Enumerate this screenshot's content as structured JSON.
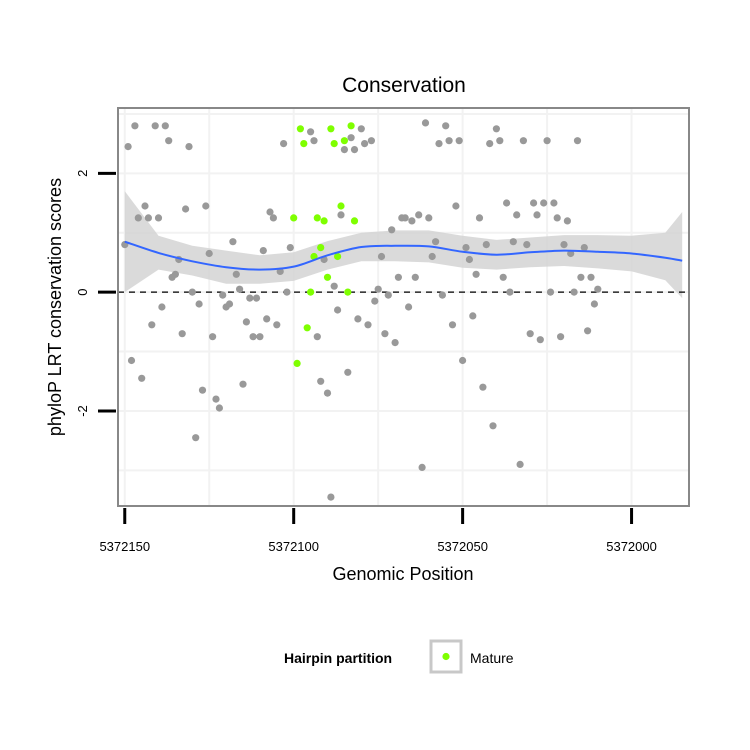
{
  "chart_data": {
    "type": "scatter",
    "title": "Conservation",
    "xlabel": "Genomic Position",
    "ylabel": "phyloP LRT conservation scores",
    "x_reversed": true,
    "xlim": [
      5372152,
      5371983
    ],
    "ylim": [
      -3.6,
      3.1
    ],
    "x_ticks": [
      5372150,
      5372100,
      5372050,
      5372000
    ],
    "x_tick_labels": [
      "5372150",
      "5372100",
      "5372050",
      "5372000"
    ],
    "y_ticks": [
      -2,
      0,
      2
    ],
    "y_tick_labels": [
      "-2",
      "0",
      "2"
    ],
    "y_grid": [
      -3,
      -1,
      1,
      3
    ],
    "x_grid": [
      5372125,
      5372075,
      5372025
    ],
    "reference_line": 0,
    "colors": {
      "other": "#999999",
      "mature": "#7FFF00",
      "smooth": "#3366FF",
      "band": "#D3D3D3",
      "panel_border": "#888888"
    },
    "legend": {
      "title": "Hairpin partition",
      "entries": [
        "Mature"
      ]
    },
    "series": [
      {
        "name": "Other",
        "points": [
          [
            5372150,
            0.8
          ],
          [
            5372149,
            2.45
          ],
          [
            5372148,
            -1.15
          ],
          [
            5372147,
            2.8
          ],
          [
            5372146,
            1.25
          ],
          [
            5372145,
            -1.45
          ],
          [
            5372144,
            1.45
          ],
          [
            5372143,
            1.25
          ],
          [
            5372142,
            -0.55
          ],
          [
            5372141,
            2.8
          ],
          [
            5372140,
            1.25
          ],
          [
            5372139,
            -0.25
          ],
          [
            5372138,
            2.8
          ],
          [
            5372137,
            2.55
          ],
          [
            5372136,
            0.25
          ],
          [
            5372135,
            0.3
          ],
          [
            5372134,
            0.55
          ],
          [
            5372133,
            -0.7
          ],
          [
            5372132,
            1.4
          ],
          [
            5372131,
            2.45
          ],
          [
            5372130,
            0.0
          ],
          [
            5372129,
            -2.45
          ],
          [
            5372128,
            -0.2
          ],
          [
            5372127,
            -1.65
          ],
          [
            5372126,
            1.45
          ],
          [
            5372125,
            0.65
          ],
          [
            5372124,
            -0.75
          ],
          [
            5372123,
            -1.8
          ],
          [
            5372122,
            -1.95
          ],
          [
            5372121,
            -0.05
          ],
          [
            5372120,
            -0.25
          ],
          [
            5372119,
            -0.2
          ],
          [
            5372118,
            0.85
          ],
          [
            5372117,
            0.3
          ],
          [
            5372116,
            0.05
          ],
          [
            5372115,
            -1.55
          ],
          [
            5372114,
            -0.5
          ],
          [
            5372113,
            -0.1
          ],
          [
            5372112,
            -0.75
          ],
          [
            5372111,
            -0.1
          ],
          [
            5372110,
            -0.75
          ],
          [
            5372109,
            0.7
          ],
          [
            5372108,
            -0.45
          ],
          [
            5372107,
            1.35
          ],
          [
            5372106,
            1.25
          ],
          [
            5372105,
            -0.55
          ],
          [
            5372104,
            0.35
          ],
          [
            5372103,
            2.5
          ],
          [
            5372102,
            0.0
          ],
          [
            5372101,
            0.75
          ],
          [
            5372095,
            2.7
          ],
          [
            5372094,
            2.55
          ],
          [
            5372093,
            -0.75
          ],
          [
            5372092,
            -1.5
          ],
          [
            5372091,
            0.55
          ],
          [
            5372090,
            -1.7
          ],
          [
            5372089,
            -3.45
          ],
          [
            5372088,
            0.1
          ],
          [
            5372087,
            -0.3
          ],
          [
            5372086,
            1.3
          ],
          [
            5372085,
            2.4
          ],
          [
            5372084,
            -1.35
          ],
          [
            5372083,
            2.6
          ],
          [
            5372082,
            2.4
          ],
          [
            5372081,
            -0.45
          ],
          [
            5372080,
            2.75
          ],
          [
            5372079,
            2.5
          ],
          [
            5372078,
            -0.55
          ],
          [
            5372077,
            2.55
          ],
          [
            5372076,
            -0.15
          ],
          [
            5372075,
            0.05
          ],
          [
            5372074,
            0.6
          ],
          [
            5372073,
            -0.7
          ],
          [
            5372072,
            -0.05
          ],
          [
            5372071,
            1.05
          ],
          [
            5372070,
            -0.85
          ],
          [
            5372069,
            0.25
          ],
          [
            5372068,
            1.25
          ],
          [
            5372067,
            1.25
          ],
          [
            5372066,
            -0.25
          ],
          [
            5372065,
            1.2
          ],
          [
            5372064,
            0.25
          ],
          [
            5372063,
            1.3
          ],
          [
            5372062,
            -2.95
          ],
          [
            5372061,
            2.85
          ],
          [
            5372060,
            1.25
          ],
          [
            5372059,
            0.6
          ],
          [
            5372058,
            0.85
          ],
          [
            5372057,
            2.5
          ],
          [
            5372056,
            -0.05
          ],
          [
            5372055,
            2.8
          ],
          [
            5372054,
            2.55
          ],
          [
            5372053,
            -0.55
          ],
          [
            5372052,
            1.45
          ],
          [
            5372051,
            2.55
          ],
          [
            5372050,
            -1.15
          ],
          [
            5372049,
            0.75
          ],
          [
            5372048,
            0.55
          ],
          [
            5372047,
            -0.4
          ],
          [
            5372046,
            0.3
          ],
          [
            5372045,
            1.25
          ],
          [
            5372044,
            -1.6
          ],
          [
            5372043,
            0.8
          ],
          [
            5372042,
            2.5
          ],
          [
            5372041,
            -2.25
          ],
          [
            5372040,
            2.75
          ],
          [
            5372039,
            2.55
          ],
          [
            5372038,
            0.25
          ],
          [
            5372037,
            1.5
          ],
          [
            5372036,
            0.0
          ],
          [
            5372035,
            0.85
          ],
          [
            5372034,
            1.3
          ],
          [
            5372033,
            -2.9
          ],
          [
            5372032,
            2.55
          ],
          [
            5372031,
            0.8
          ],
          [
            5372030,
            -0.7
          ],
          [
            5372029,
            1.5
          ],
          [
            5372028,
            1.3
          ],
          [
            5372027,
            -0.8
          ],
          [
            5372026,
            1.5
          ],
          [
            5372025,
            2.55
          ],
          [
            5372024,
            0.0
          ],
          [
            5372023,
            1.5
          ],
          [
            5372022,
            1.25
          ],
          [
            5372021,
            -0.75
          ],
          [
            5372020,
            0.8
          ],
          [
            5372019,
            1.2
          ],
          [
            5372018,
            0.65
          ],
          [
            5372017,
            0.0
          ],
          [
            5372016,
            2.55
          ],
          [
            5372015,
            0.25
          ],
          [
            5372014,
            0.75
          ],
          [
            5372013,
            -0.65
          ],
          [
            5372012,
            0.25
          ],
          [
            5372011,
            -0.2
          ],
          [
            5372010,
            0.05
          ]
        ]
      },
      {
        "name": "Mature",
        "points": [
          [
            5372100,
            1.25
          ],
          [
            5372099,
            -1.2
          ],
          [
            5372098,
            2.75
          ],
          [
            5372097,
            2.5
          ],
          [
            5372096,
            -0.6
          ],
          [
            5372095,
            0.0
          ],
          [
            5372094,
            0.6
          ],
          [
            5372093,
            1.25
          ],
          [
            5372092,
            0.75
          ],
          [
            5372091,
            1.2
          ],
          [
            5372090,
            0.25
          ],
          [
            5372089,
            2.75
          ],
          [
            5372088,
            2.5
          ],
          [
            5372087,
            0.6
          ],
          [
            5372086,
            1.45
          ],
          [
            5372085,
            2.55
          ],
          [
            5372084,
            0.0
          ],
          [
            5372083,
            2.8
          ],
          [
            5372082,
            1.2
          ]
        ]
      }
    ],
    "smooth": {
      "method": "loess",
      "x": [
        5372150,
        5372140,
        5372130,
        5372120,
        5372110,
        5372100,
        5372090,
        5372080,
        5372070,
        5372060,
        5372050,
        5372040,
        5372030,
        5372020,
        5372010,
        5372000,
        5371990,
        5371985
      ],
      "y": [
        0.85,
        0.66,
        0.52,
        0.42,
        0.38,
        0.43,
        0.62,
        0.76,
        0.78,
        0.77,
        0.68,
        0.63,
        0.67,
        0.7,
        0.68,
        0.65,
        0.58,
        0.53
      ],
      "lower": [
        0.0,
        0.38,
        0.28,
        0.14,
        0.14,
        0.19,
        0.38,
        0.52,
        0.52,
        0.5,
        0.41,
        0.38,
        0.42,
        0.44,
        0.4,
        0.35,
        0.2,
        -0.1
      ],
      "upper": [
        1.7,
        0.95,
        0.78,
        0.7,
        0.62,
        0.67,
        0.86,
        1.0,
        1.04,
        1.04,
        0.95,
        0.88,
        0.92,
        0.96,
        0.96,
        0.95,
        1.0,
        1.35
      ]
    }
  }
}
